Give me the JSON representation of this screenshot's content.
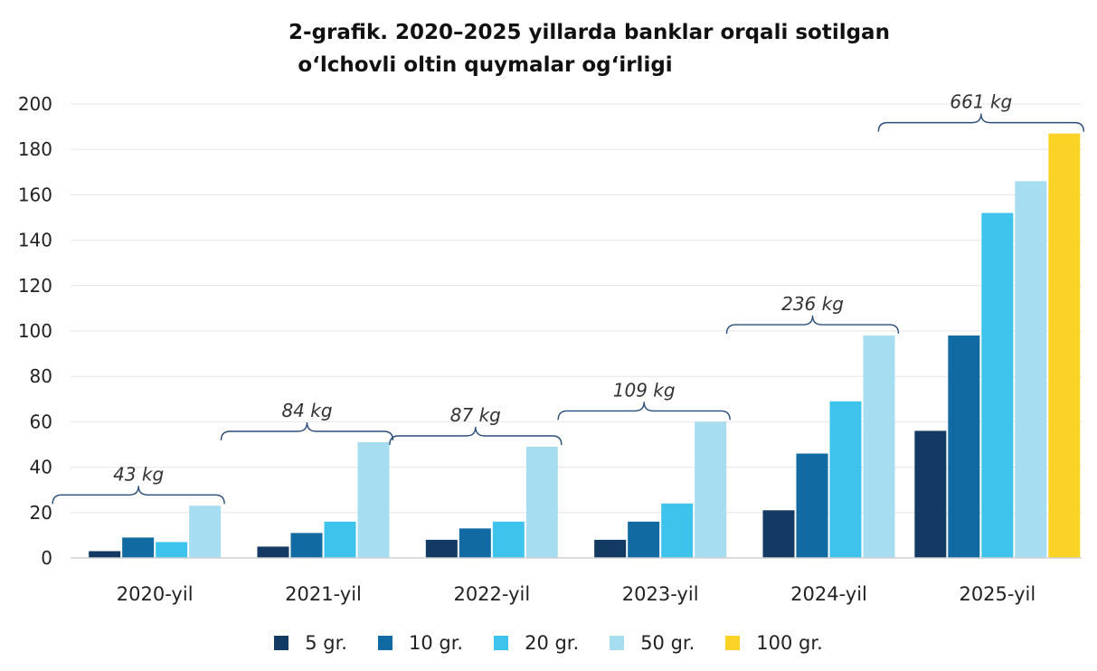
{
  "chart_data": {
    "type": "bar",
    "title_line1": "2-grafik. 2020–2025 yillarda banklar orqali sotilgan",
    "title_line2": "o‘lchovli oltin quymalar og‘irligi",
    "categories": [
      "2020-yil",
      "2021-yil",
      "2022-yil",
      "2023-yil",
      "2024-yil",
      "2025-yil"
    ],
    "series": [
      {
        "name": "5 gr.",
        "color": "#133a63",
        "values": [
          3,
          5,
          8,
          8,
          21,
          56
        ]
      },
      {
        "name": "10 gr.",
        "color": "#116aa1",
        "values": [
          9,
          11,
          13,
          16,
          46,
          98
        ]
      },
      {
        "name": "20 gr.",
        "color": "#3ec4ec",
        "values": [
          7,
          16,
          16,
          24,
          69,
          152
        ]
      },
      {
        "name": "50 gr.",
        "color": "#a6ddf1",
        "values": [
          23,
          51,
          49,
          60,
          98,
          166
        ]
      },
      {
        "name": "100 gr.",
        "color": "#fbd327",
        "values": [
          0,
          0,
          0,
          0,
          0,
          187
        ]
      }
    ],
    "ylim": [
      0,
      200
    ],
    "yticks": [
      "0",
      "20",
      "40",
      "60",
      "80",
      "100",
      "120",
      "140",
      "160",
      "180",
      "200"
    ],
    "grid": true,
    "legend_position": "bottom",
    "annotations": [
      "43 kg",
      "84 kg",
      "87 kg",
      "109 kg",
      "236 kg",
      "661 kg"
    ]
  }
}
